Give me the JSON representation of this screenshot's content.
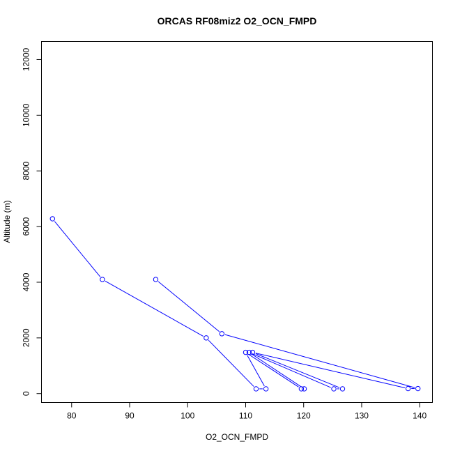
{
  "chart_data": {
    "type": "line",
    "title": "ORCAS RF08miz2 O2_OCN_FMPD",
    "xlabel": "O2_OCN_FMPD",
    "ylabel": "Altitude (m)",
    "xlim": [
      74.8,
      142.2
    ],
    "ylim": [
      -320,
      12650
    ],
    "x_ticks": [
      80,
      90,
      100,
      110,
      120,
      130,
      140
    ],
    "y_ticks": [
      0,
      2000,
      4000,
      6000,
      8000,
      10000,
      12000
    ],
    "series": [
      {
        "color": "#0000ff",
        "marker": "open-circle",
        "points": [
          {
            "x": 76.7,
            "y": 6280
          },
          {
            "x": 85.3,
            "y": 4100
          },
          {
            "x": 103.2,
            "y": 2000
          },
          {
            "x": 111.8,
            "y": 170
          },
          {
            "x": 113.5,
            "y": 170
          },
          {
            "x": 110.0,
            "y": 1480
          },
          {
            "x": 119.6,
            "y": 170
          },
          {
            "x": 120.1,
            "y": 170
          },
          {
            "x": 110.6,
            "y": 1480
          },
          {
            "x": 125.2,
            "y": 170
          },
          {
            "x": 126.7,
            "y": 170
          },
          {
            "x": 111.2,
            "y": 1480
          },
          {
            "x": 138.0,
            "y": 180
          },
          {
            "x": 139.7,
            "y": 180
          },
          {
            "x": 105.9,
            "y": 2150
          },
          {
            "x": 94.5,
            "y": 4100
          }
        ]
      }
    ]
  }
}
